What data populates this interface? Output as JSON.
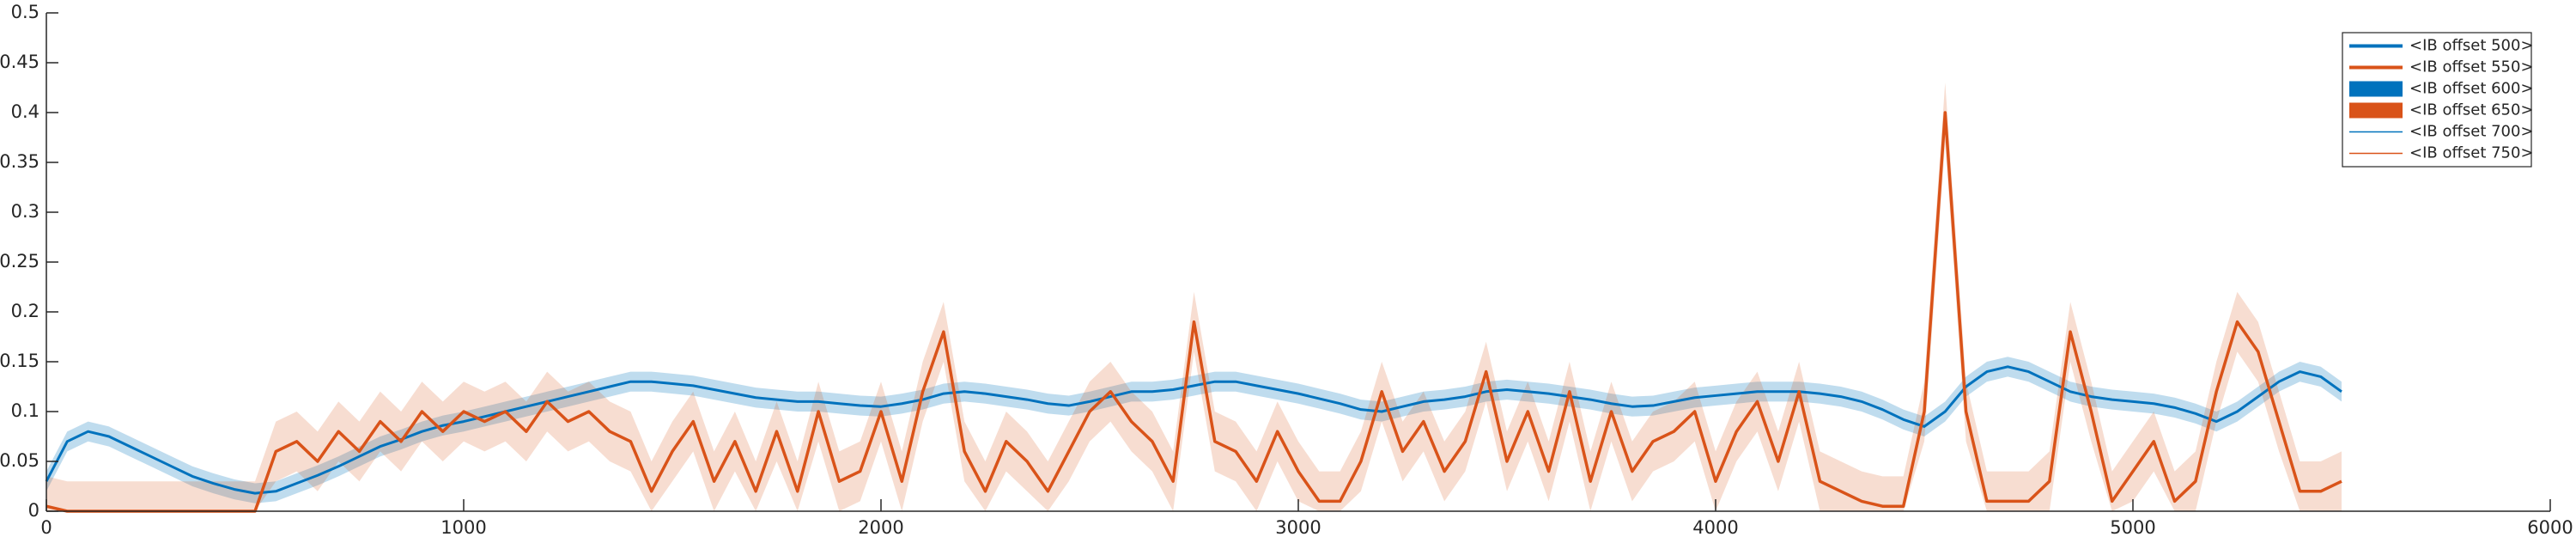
{
  "chart_data": {
    "type": "line",
    "xlim": [
      0,
      6000
    ],
    "xticks": [
      0,
      1000,
      2000,
      3000,
      4000,
      5000,
      6000
    ],
    "ylim": [
      0,
      0.5
    ],
    "yticks": [
      0,
      0.05,
      0.1,
      0.15,
      0.2,
      0.25,
      0.3,
      0.35,
      0.4,
      0.45,
      0.5
    ],
    "x": [
      0,
      50,
      100,
      150,
      200,
      250,
      300,
      350,
      400,
      450,
      500,
      550,
      600,
      650,
      700,
      750,
      800,
      850,
      900,
      950,
      1000,
      1050,
      1100,
      1150,
      1200,
      1250,
      1300,
      1350,
      1400,
      1450,
      1500,
      1550,
      1600,
      1650,
      1700,
      1750,
      1800,
      1850,
      1900,
      1950,
      2000,
      2050,
      2100,
      2150,
      2200,
      2250,
      2300,
      2350,
      2400,
      2450,
      2500,
      2550,
      2600,
      2650,
      2700,
      2750,
      2800,
      2850,
      2900,
      2950,
      3000,
      3050,
      3100,
      3150,
      3200,
      3250,
      3300,
      3350,
      3400,
      3450,
      3500,
      3550,
      3600,
      3650,
      3700,
      3750,
      3800,
      3850,
      3900,
      3950,
      4000,
      4050,
      4100,
      4150,
      4200,
      4250,
      4300,
      4350,
      4400,
      4450,
      4500,
      4550,
      4600,
      4650,
      4700,
      4750,
      4800,
      4850,
      4900,
      4950,
      5000,
      5050,
      5100,
      5150,
      5200,
      5250,
      5300,
      5350,
      5400,
      5450,
      5500
    ],
    "series": [
      {
        "color": "#0072bd",
        "band": 0.01,
        "values": [
          0.03,
          0.07,
          0.08,
          0.075,
          0.065,
          0.055,
          0.045,
          0.035,
          0.028,
          0.022,
          0.018,
          0.02,
          0.028,
          0.036,
          0.045,
          0.055,
          0.065,
          0.072,
          0.08,
          0.086,
          0.09,
          0.095,
          0.1,
          0.105,
          0.11,
          0.115,
          0.12,
          0.125,
          0.13,
          0.13,
          0.128,
          0.126,
          0.122,
          0.118,
          0.114,
          0.112,
          0.11,
          0.11,
          0.108,
          0.106,
          0.105,
          0.108,
          0.112,
          0.118,
          0.12,
          0.118,
          0.115,
          0.112,
          0.108,
          0.106,
          0.11,
          0.115,
          0.12,
          0.12,
          0.122,
          0.126,
          0.13,
          0.13,
          0.126,
          0.122,
          0.118,
          0.113,
          0.108,
          0.102,
          0.1,
          0.105,
          0.11,
          0.112,
          0.115,
          0.12,
          0.122,
          0.12,
          0.118,
          0.115,
          0.112,
          0.108,
          0.105,
          0.106,
          0.11,
          0.114,
          0.116,
          0.118,
          0.12,
          0.12,
          0.12,
          0.118,
          0.115,
          0.11,
          0.102,
          0.092,
          0.085,
          0.1,
          0.125,
          0.14,
          0.145,
          0.14,
          0.13,
          0.12,
          0.115,
          0.112,
          0.11,
          0.108,
          0.104,
          0.098,
          0.09,
          0.1,
          0.115,
          0.13,
          0.14,
          0.135,
          0.12
        ]
      },
      {
        "color": "#d95319",
        "band": 0.03,
        "values": [
          0.005,
          0,
          0,
          0,
          0,
          0,
          0,
          0,
          0,
          0,
          0,
          0.06,
          0.07,
          0.05,
          0.08,
          0.06,
          0.09,
          0.07,
          0.1,
          0.08,
          0.1,
          0.09,
          0.1,
          0.08,
          0.11,
          0.09,
          0.1,
          0.08,
          0.07,
          0.02,
          0.06,
          0.09,
          0.03,
          0.07,
          0.02,
          0.08,
          0.02,
          0.1,
          0.03,
          0.04,
          0.1,
          0.03,
          0.12,
          0.18,
          0.06,
          0.02,
          0.07,
          0.05,
          0.02,
          0.06,
          0.1,
          0.12,
          0.09,
          0.07,
          0.03,
          0.19,
          0.07,
          0.06,
          0.03,
          0.08,
          0.04,
          0.01,
          0.01,
          0.05,
          0.12,
          0.06,
          0.09,
          0.04,
          0.07,
          0.14,
          0.05,
          0.1,
          0.04,
          0.12,
          0.03,
          0.1,
          0.04,
          0.07,
          0.08,
          0.1,
          0.03,
          0.08,
          0.11,
          0.05,
          0.12,
          0.03,
          0.02,
          0.01,
          0.005,
          0.005,
          0.1,
          0.4,
          0.1,
          0.01,
          0.01,
          0.01,
          0.03,
          0.18,
          0.1,
          0.01,
          0.04,
          0.07,
          0.01,
          0.03,
          0.12,
          0.19,
          0.16,
          0.09,
          0.02,
          0.02,
          0.03
        ]
      }
    ],
    "legend": [
      {
        "label": "<IB offset 500>",
        "color": "#0072bd",
        "style": "thick-line"
      },
      {
        "label": "<IB offset 550>",
        "color": "#d95319",
        "style": "thick-line"
      },
      {
        "label": "<IB offset 600>",
        "color": "#0072bd",
        "style": "patch"
      },
      {
        "label": "<IB offset 650>",
        "color": "#d95319",
        "style": "patch"
      },
      {
        "label": "<IB offset 700>",
        "color": "#0072bd",
        "style": "thin-line"
      },
      {
        "label": "<IB offset 750>",
        "color": "#d95319",
        "style": "thin-line"
      }
    ]
  }
}
